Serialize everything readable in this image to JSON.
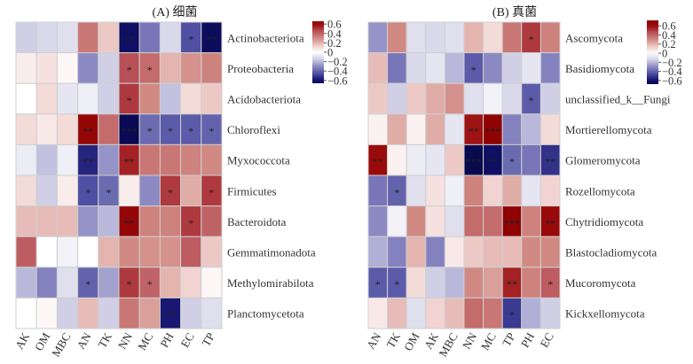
{
  "chart_data": [
    {
      "type": "heatmap",
      "title": "(A) 细菌",
      "x_categories": [
        "AK",
        "OM",
        "MBC",
        "AN",
        "TK",
        "NN",
        "MC",
        "PH",
        "EC",
        "TP"
      ],
      "y_categories": [
        "Actinobacteriota",
        "Proteobacteria",
        "Acidobacteriota",
        "Chloroflexi",
        "Myxococcota",
        "Firmicutes",
        "Bacteroidota",
        "Gemmatimonadota",
        "Methylomirabilota",
        "Planctomycetota"
      ],
      "values": [
        [
          -0.15,
          -0.12,
          -0.1,
          0.35,
          0.15,
          -0.62,
          -0.35,
          -0.12,
          -0.45,
          -0.65
        ],
        [
          0.05,
          0.08,
          0.02,
          -0.3,
          -0.15,
          0.45,
          0.38,
          0.2,
          0.28,
          0.32
        ],
        [
          0,
          0.1,
          -0.08,
          -0.05,
          -0.15,
          0.5,
          0.3,
          -0.18,
          0.1,
          0.15
        ],
        [
          0.1,
          0.06,
          0.1,
          0.65,
          0.38,
          -0.68,
          -0.38,
          -0.42,
          -0.42,
          -0.4
        ],
        [
          -0.06,
          -0.18,
          -0.05,
          -0.55,
          -0.28,
          0.55,
          0.35,
          0.35,
          0.32,
          0.3
        ],
        [
          0.1,
          -0.15,
          0.05,
          -0.45,
          -0.38,
          0.05,
          -0.3,
          0.5,
          0.22,
          0.5
        ],
        [
          0.18,
          0.18,
          0.18,
          -0.28,
          -0.2,
          0.65,
          0.32,
          0.32,
          0.5,
          0.4
        ],
        [
          0.42,
          0,
          -0.04,
          0,
          0.2,
          0.3,
          0.28,
          0.28,
          0.42,
          0.15
        ],
        [
          -0.2,
          -0.32,
          -0.1,
          -0.4,
          -0.25,
          0.5,
          0.4,
          0.2,
          0.12,
          0.02
        ],
        [
          0,
          0.02,
          -0.15,
          0.18,
          -0.15,
          0.35,
          0.25,
          -0.58,
          -0.15,
          -0.1
        ]
      ],
      "significance": [
        [
          "",
          "",
          "",
          "",
          "",
          "**",
          "",
          "",
          "*",
          "**"
        ],
        [
          "",
          "",
          "",
          "",
          "",
          "*",
          "*",
          "",
          "",
          ""
        ],
        [
          "",
          "",
          "",
          "",
          "",
          "*",
          "",
          "",
          "",
          ""
        ],
        [
          "",
          "",
          "",
          "**",
          "",
          "***",
          "*",
          "*",
          "*",
          "*"
        ],
        [
          "",
          "",
          "",
          "**",
          "",
          "**",
          "",
          "",
          "",
          ""
        ],
        [
          "",
          "",
          "",
          "*",
          "*",
          "",
          "",
          "*",
          "",
          "*"
        ],
        [
          "",
          "",
          "",
          "",
          "",
          "**",
          "",
          "",
          "*",
          ""
        ],
        [
          "",
          "",
          "",
          "",
          "",
          "",
          "",
          "",
          "",
          ""
        ],
        [
          "",
          "",
          "",
          "*",
          "",
          "*",
          "*",
          "",
          "",
          ""
        ],
        [
          "",
          "",
          "",
          "",
          "",
          "",
          "",
          "**",
          "",
          ""
        ]
      ],
      "colorbar": {
        "ticks": [
          0.6,
          0.4,
          0.2,
          0,
          -0.2,
          -0.4,
          -0.6
        ],
        "tick_labels": [
          "0.6",
          "0.4",
          "0.2",
          "0",
          "−0.2",
          "−0.4",
          "−0.6"
        ],
        "range": [
          -0.66,
          0.66
        ]
      },
      "colors": {
        "low": "#0b0a5c",
        "mid": "#ffffff",
        "high": "#9a0a0a"
      }
    },
    {
      "type": "heatmap",
      "title": "(B) 真菌",
      "x_categories": [
        "AN",
        "TK",
        "OM",
        "AK",
        "MBC",
        "NN",
        "MC",
        "TP",
        "PH",
        "EC"
      ],
      "y_categories": [
        "Ascomycota",
        "Basidiomycota",
        "unclassified_k__Fungi",
        "Mortierellomycota",
        "Glomeromycota",
        "Rozellomycota",
        "Chytridiomycota",
        "Blastocladiomycota",
        "Mucoromycota",
        "Kickxellomycota"
      ],
      "values": [
        [
          -0.28,
          0.3,
          -0.1,
          -0.12,
          -0.1,
          0.2,
          0.1,
          0.35,
          0.5,
          0.32
        ],
        [
          0.18,
          -0.35,
          -0.12,
          -0.08,
          -0.2,
          -0.42,
          -0.3,
          -0.15,
          -0.08,
          -0.32
        ],
        [
          0.15,
          -0.15,
          0.15,
          0.22,
          0.28,
          -0.1,
          -0.04,
          -0.12,
          -0.42,
          -0.15
        ],
        [
          0.04,
          0.22,
          0.04,
          0.22,
          -0.08,
          0.58,
          0.7,
          -0.32,
          -0.2,
          0.1
        ],
        [
          0.6,
          0.04,
          -0.06,
          -0.08,
          0.15,
          -0.7,
          -0.62,
          -0.38,
          -0.35,
          -0.52
        ],
        [
          -0.35,
          -0.4,
          -0.1,
          0.08,
          -0.05,
          0.32,
          0.12,
          0.22,
          -0.08,
          0.12
        ],
        [
          -0.3,
          -0.04,
          0.3,
          0.08,
          -0.1,
          0.38,
          0.38,
          0.7,
          0.32,
          0.62
        ],
        [
          -0.22,
          -0.32,
          0.2,
          -0.32,
          0.06,
          0.15,
          0.18,
          0.18,
          0.3,
          0.3
        ],
        [
          -0.42,
          -0.42,
          0.1,
          -0.15,
          -0.2,
          0.3,
          0.25,
          0.55,
          0.32,
          0.42
        ],
        [
          0.06,
          0.18,
          -0.1,
          0.12,
          0.18,
          0.38,
          0.35,
          -0.5,
          -0.22,
          -0.15
        ]
      ],
      "significance": [
        [
          "",
          "",
          "",
          "",
          "",
          "",
          "",
          "",
          "*",
          ""
        ],
        [
          "",
          "",
          "",
          "",
          "",
          "*",
          "",
          "",
          "",
          ""
        ],
        [
          "",
          "",
          "",
          "",
          "",
          "",
          "",
          "",
          "*",
          ""
        ],
        [
          "",
          "",
          "",
          "",
          "",
          "**",
          "***",
          "",
          "",
          ""
        ],
        [
          "**",
          "",
          "",
          "",
          "",
          "***",
          "**",
          "*",
          "",
          "**"
        ],
        [
          "",
          "*",
          "",
          "",
          "",
          "",
          "",
          "",
          "",
          ""
        ],
        [
          "",
          "",
          "",
          "",
          "",
          "",
          "",
          "***",
          "",
          "**"
        ],
        [
          "",
          "",
          "",
          "",
          "",
          "",
          "",
          "",
          "",
          ""
        ],
        [
          "*",
          "*",
          "",
          "",
          "",
          "",
          "",
          "**",
          "",
          "*"
        ],
        [
          "",
          "",
          "",
          "",
          "",
          "",
          "",
          "*",
          "",
          ""
        ]
      ],
      "colorbar": {
        "ticks": [
          0.6,
          0.4,
          0.2,
          0,
          -0.2,
          -0.4,
          -0.6
        ],
        "tick_labels": [
          "0.6",
          "0.4",
          "0.2",
          "0",
          "−0.2",
          "−0.4",
          "−0.6"
        ],
        "range": [
          -0.68,
          0.72
        ]
      },
      "colors": {
        "low": "#0b0a5c",
        "mid": "#ffffff",
        "high": "#9a0a0a"
      }
    }
  ]
}
